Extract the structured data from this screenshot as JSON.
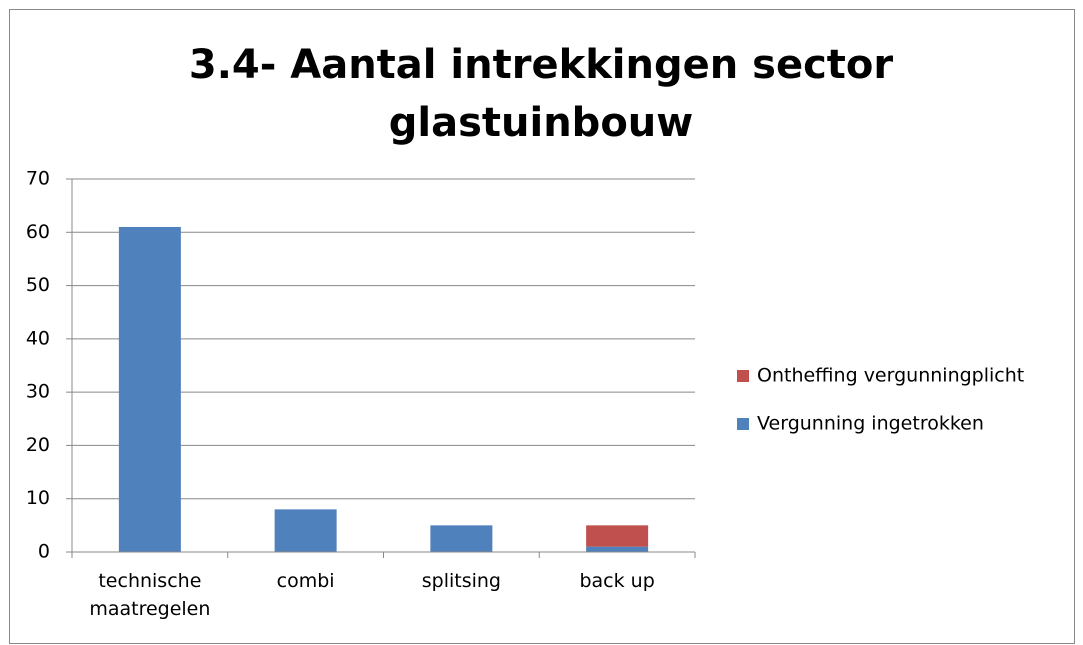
{
  "chart_data": {
    "type": "bar",
    "stacked": true,
    "title": "3.4- Aantal intrekkingen sector glastuinbouw",
    "categories": [
      "technische maatregelen",
      "combi",
      "splitsing",
      "back up"
    ],
    "series": [
      {
        "name": "Vergunning ingetrokken",
        "color": "#4f81bd",
        "values": [
          61,
          8,
          5,
          1
        ]
      },
      {
        "name": "Ontheffing vergunningplicht",
        "color": "#c0504d",
        "values": [
          0,
          0,
          0,
          4
        ]
      }
    ],
    "ylim": [
      0,
      70
    ],
    "yticks": [
      0,
      10,
      20,
      30,
      40,
      50,
      60,
      70
    ],
    "grid": true,
    "legend": "right"
  }
}
